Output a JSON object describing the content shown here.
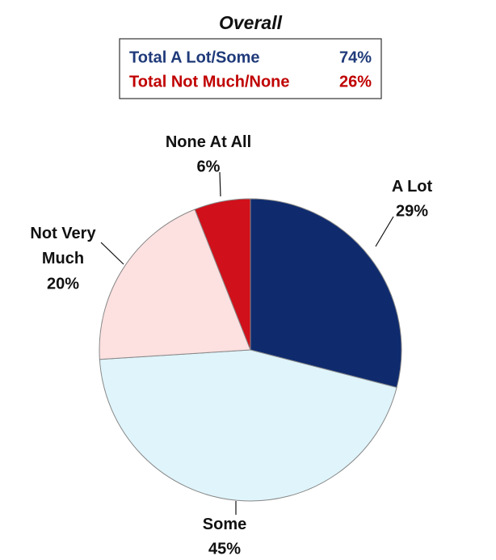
{
  "chart_data": {
    "type": "pie",
    "title": "Overall",
    "summary": [
      {
        "name": "Total A Lot/Some",
        "value": "74%",
        "color": "#1f3a7a"
      },
      {
        "name": "Total Not Much/None",
        "value": "26%",
        "color": "#c00000"
      }
    ],
    "categories": [
      "A Lot",
      "Some",
      "Not Very Much",
      "None At All"
    ],
    "values": [
      29,
      45,
      20,
      6
    ],
    "value_labels": [
      "29%",
      "45%",
      "20%",
      "6%"
    ],
    "colors": [
      "#0f2b6e",
      "#dff4fb",
      "#fde0e0",
      "#d0101a"
    ]
  }
}
